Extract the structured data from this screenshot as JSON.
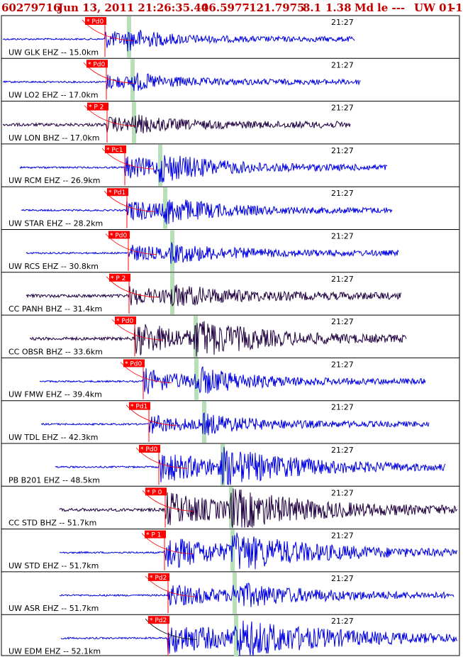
{
  "header": {
    "event_id": "60279716",
    "datetime": "Jun 13, 2011 21:26:35.40",
    "lat": "46.5977",
    "lon": "-121.7975",
    "depth": "8.1",
    "mag": "1.38",
    "magtype": "Md",
    "etype": "le ---",
    "network": "UW 01",
    "extra": "-1"
  },
  "chart_data": {
    "type": "line",
    "time_label": "21:27",
    "colors": {
      "ehz": "#0000e0",
      "bhz": "#200040",
      "pick": "#ff0000",
      "s_marker": "#b8e0b8",
      "frame": "#000000"
    },
    "traces": [
      {
        "label": "UW GLK EHZ -- 15.0km",
        "phase": "Pd0",
        "kind": "ehz",
        "amp": 10
      },
      {
        "label": "UW LO2 EHZ -- 17.0km",
        "phase": "Pd0",
        "kind": "ehz",
        "amp": 8
      },
      {
        "label": "UW LON BHZ -- 17.0km",
        "phase": "P 2",
        "kind": "bhz",
        "amp": 8
      },
      {
        "label": "UW RCM EHZ -- 26.9km",
        "phase": "Pc1",
        "kind": "ehz",
        "amp": 14
      },
      {
        "label": "UW STAR EHZ -- 28.2km",
        "phase": "Pd1",
        "kind": "ehz",
        "amp": 14
      },
      {
        "label": "UW RCS EHZ -- 30.8km",
        "phase": "Pd0",
        "kind": "ehz",
        "amp": 9
      },
      {
        "label": "CC PANH BHZ -- 31.4km",
        "phase": "P 2",
        "kind": "bhz",
        "amp": 10
      },
      {
        "label": "CC OBSR BHZ -- 33.6km",
        "phase": "Pd0",
        "kind": "bhz",
        "amp": 22
      },
      {
        "label": "UW FMW EHZ -- 39.4km",
        "phase": "Pd0",
        "kind": "ehz",
        "amp": 16
      },
      {
        "label": "UW TDL EHZ -- 42.3km",
        "phase": "Pd1",
        "kind": "ehz",
        "amp": 11
      },
      {
        "label": "PB B201 EHZ -- 48.5km",
        "phase": "Pd0",
        "kind": "ehz",
        "amp": 20
      },
      {
        "label": "CC STD BHZ -- 51.7km",
        "phase": "P 0",
        "kind": "bhz",
        "amp": 22
      },
      {
        "label": "UW STD EHZ -- 51.7km",
        "phase": "P 1",
        "kind": "ehz",
        "amp": 22
      },
      {
        "label": "UW ASR EHZ -- 51.7km",
        "phase": "Pd2",
        "kind": "ehz",
        "amp": 14
      },
      {
        "label": "UW EDM EHZ -- 52.1km",
        "phase": "Pd2",
        "kind": "ehz",
        "amp": 20
      }
    ]
  }
}
